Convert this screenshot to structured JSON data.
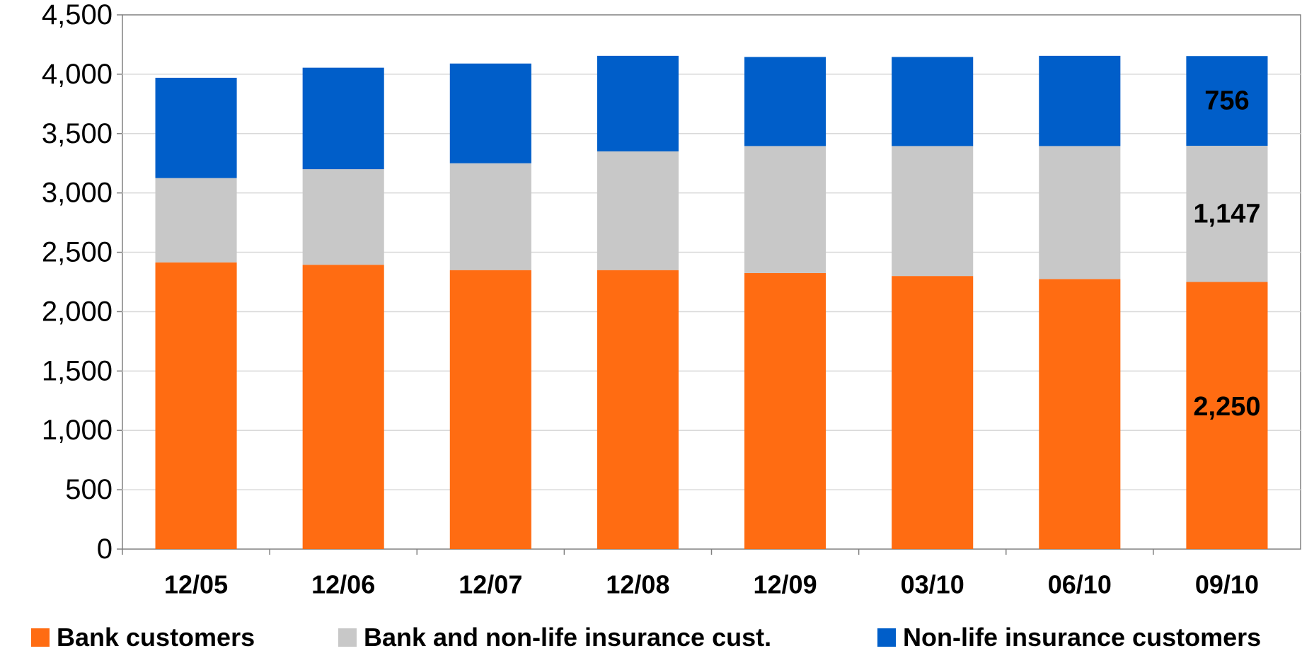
{
  "chart_data": {
    "type": "bar",
    "stacked": true,
    "categories": [
      "12/05",
      "12/06",
      "12/07",
      "12/08",
      "12/09",
      "03/10",
      "06/10",
      "09/10"
    ],
    "series": [
      {
        "name": "Bank customers",
        "color": "#FF6C12",
        "values": [
          2415,
          2395,
          2350,
          2350,
          2325,
          2300,
          2275,
          2250
        ]
      },
      {
        "name": "Bank and non-life insurance cust.",
        "color": "#C8C8C8",
        "values": [
          710,
          805,
          900,
          1000,
          1070,
          1095,
          1120,
          1147
        ]
      },
      {
        "name": "Non-life insurance customers",
        "color": "#005EC9",
        "values": [
          845,
          855,
          840,
          805,
          750,
          750,
          760,
          756
        ]
      }
    ],
    "yticks": [
      "0",
      "500",
      "1,000",
      "1,500",
      "2,000",
      "2,500",
      "3,000",
      "3,500",
      "4,000",
      "4,500"
    ],
    "ylim": [
      0,
      4500
    ],
    "grid": true,
    "legend_position": "bottom",
    "data_labels": [
      {
        "category": "09/10",
        "series": "Non-life insurance customers",
        "text": "756"
      },
      {
        "category": "09/10",
        "series": "Bank and non-life insurance cust.",
        "text": "1,147"
      },
      {
        "category": "09/10",
        "series": "Bank customers",
        "text": "2,250"
      }
    ]
  }
}
